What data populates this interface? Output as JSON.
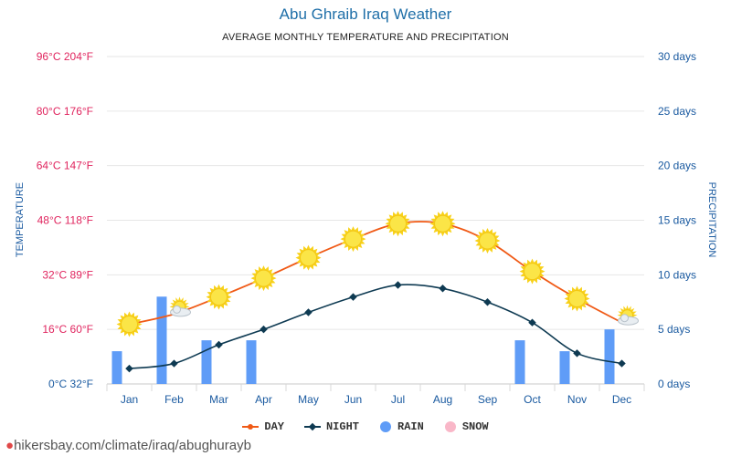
{
  "header": {
    "title": "Abu Ghraib Iraq Weather",
    "subtitle": "AVERAGE MONTHLY TEMPERATURE AND PRECIPITATION"
  },
  "footer": {
    "url": "hikersbay.com/climate/iraq/abughurayb"
  },
  "colors": {
    "day": "#f05a16",
    "night": "#0e3a52",
    "rain": "#5f9cf7",
    "snow": "#f9b7c8",
    "left_axis": "#e0245e",
    "right_axis": "#1a5aa0",
    "month": "#1a5aa0"
  },
  "chart_data": {
    "type": "line",
    "categories": [
      "Jan",
      "Feb",
      "Mar",
      "Apr",
      "May",
      "Jun",
      "Jul",
      "Aug",
      "Sep",
      "Oct",
      "Nov",
      "Dec"
    ],
    "series": [
      {
        "name": "DAY",
        "axis": "temperature",
        "unit": "°C",
        "values": [
          17.5,
          20.5,
          25.5,
          31,
          37,
          42.5,
          47,
          47,
          42,
          33,
          25,
          18
        ],
        "icons": [
          "sun",
          "sun-cloud",
          "sun",
          "sun",
          "sun",
          "sun",
          "sun",
          "sun",
          "sun",
          "sun",
          "sun",
          "sun-cloud"
        ]
      },
      {
        "name": "NIGHT",
        "axis": "temperature",
        "unit": "°C",
        "values": [
          4.5,
          6,
          11.5,
          16,
          21,
          25.5,
          29,
          28,
          24,
          18,
          9,
          6
        ]
      },
      {
        "name": "RAIN",
        "axis": "precipitation",
        "unit": "days",
        "type": "bar",
        "values": [
          3,
          8,
          4,
          4,
          0,
          0,
          0,
          0,
          0,
          4,
          3,
          5
        ]
      },
      {
        "name": "SNOW",
        "axis": "precipitation",
        "unit": "days",
        "type": "bar",
        "values": [
          0,
          0,
          0,
          0,
          0,
          0,
          0,
          0,
          0,
          0,
          0,
          0
        ]
      }
    ],
    "left_axis": {
      "label": "TEMPERATURE",
      "ylim": [
        0,
        96
      ],
      "ticks": [
        0,
        16,
        32,
        48,
        64,
        80,
        96
      ],
      "tick_labels": [
        "0°C 32°F",
        "16°C 60°F",
        "32°C 89°F",
        "48°C 118°F",
        "64°C 147°F",
        "80°C 176°F",
        "96°C 204°F"
      ]
    },
    "right_axis": {
      "label": "PRECIPITATION",
      "ylim": [
        0,
        30
      ],
      "ticks": [
        0,
        5,
        10,
        15,
        20,
        25,
        30
      ],
      "tick_labels": [
        "0 days",
        "5 days",
        "10 days",
        "15 days",
        "20 days",
        "25 days",
        "30 days"
      ]
    },
    "legend": [
      "DAY",
      "NIGHT",
      "RAIN",
      "SNOW"
    ],
    "legend_position": "bottom",
    "grid": true
  }
}
